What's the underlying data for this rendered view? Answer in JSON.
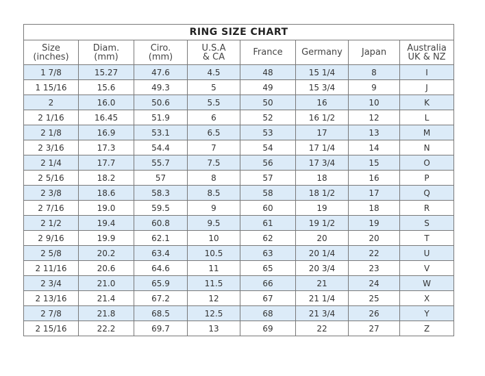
{
  "title": "RING SIZE CHART",
  "columns": [
    [
      "Size",
      "(inches)"
    ],
    [
      "Diam.",
      "(mm)"
    ],
    [
      "Ciro.",
      "(mm)"
    ],
    [
      "U.S.A",
      "& CA"
    ],
    [
      "France",
      ""
    ],
    [
      "Germany",
      ""
    ],
    [
      "Japan",
      ""
    ],
    [
      "Australia",
      "UK & NZ"
    ]
  ],
  "rows": [
    [
      "1 7/8",
      "15.27",
      "47.6",
      "4.5",
      "48",
      "15 1/4",
      "8",
      "I"
    ],
    [
      "1 15/16",
      "15.6",
      "49.3",
      "5",
      "49",
      "15 3/4",
      "9",
      "J"
    ],
    [
      "2",
      "16.0",
      "50.6",
      "5.5",
      "50",
      "16",
      "10",
      "K"
    ],
    [
      "2 1/16",
      "16.45",
      "51.9",
      "6",
      "52",
      "16 1/2",
      "12",
      "L"
    ],
    [
      "2 1/8",
      "16.9",
      "53.1",
      "6.5",
      "53",
      "17",
      "13",
      "M"
    ],
    [
      "2 3/16",
      "17.3",
      "54.4",
      "7",
      "54",
      "17 1/4",
      "14",
      "N"
    ],
    [
      "2 1/4",
      "17.7",
      "55.7",
      "7.5",
      "56",
      "17 3/4",
      "15",
      "O"
    ],
    [
      "2 5/16",
      "18.2",
      "57",
      "8",
      "57",
      "18",
      "16",
      "P"
    ],
    [
      "2 3/8",
      "18.6",
      "58.3",
      "8.5",
      "58",
      "18 1/2",
      "17",
      "Q"
    ],
    [
      "2 7/16",
      "19.0",
      "59.5",
      "9",
      "60",
      "19",
      "18",
      "R"
    ],
    [
      "2 1/2",
      "19.4",
      "60.8",
      "9.5",
      "61",
      "19 1/2",
      "19",
      "S"
    ],
    [
      "2 9/16",
      "19.9",
      "62.1",
      "10",
      "62",
      "20",
      "20",
      "T"
    ],
    [
      "2 5/8",
      "20.2",
      "63.4",
      "10.5",
      "63",
      "20 1/4",
      "22",
      "U"
    ],
    [
      "2 11/16",
      "20.6",
      "64.6",
      "11",
      "65",
      "20 3/4",
      "23",
      "V"
    ],
    [
      "2 3/4",
      "21.0",
      "65.9",
      "11.5",
      "66",
      "21",
      "24",
      "W"
    ],
    [
      "2 13/16",
      "21.4",
      "67.2",
      "12",
      "67",
      "21 1/4",
      "25",
      "X"
    ],
    [
      "2 7/8",
      "21.8",
      "68.5",
      "12.5",
      "68",
      "21 3/4",
      "26",
      "Y"
    ],
    [
      "2 15/16",
      "22.2",
      "69.7",
      "13",
      "69",
      "22",
      "27",
      "Z"
    ]
  ],
  "colors": {
    "stripe": "#dcebf8",
    "border": "#777777"
  }
}
